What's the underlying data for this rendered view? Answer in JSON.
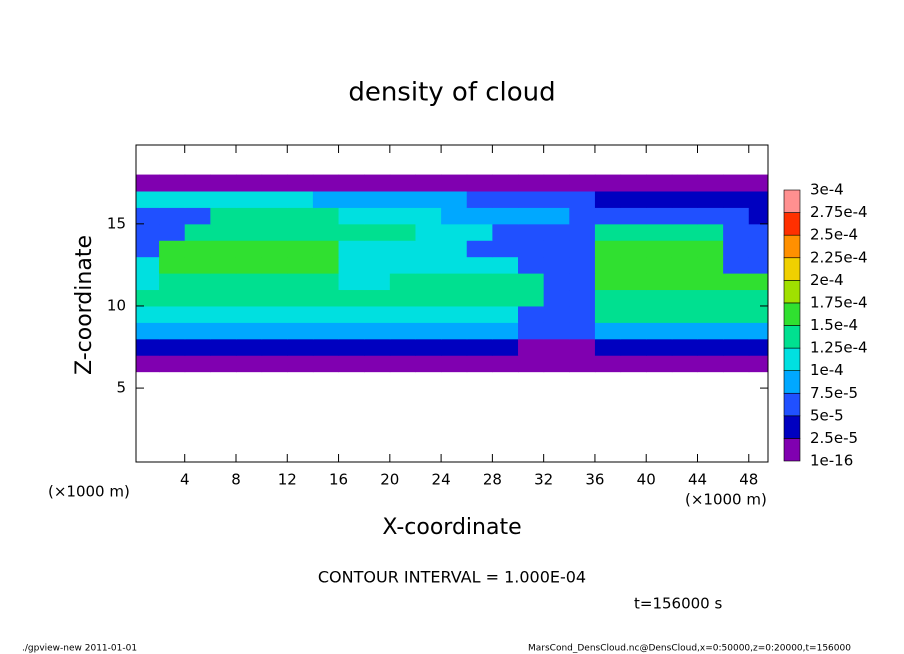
{
  "chart_data": {
    "type": "heatmap",
    "title": "density of cloud",
    "x_label": "X-coordinate",
    "y_label": "Z-coordinate",
    "x_unit": "(×1000 m)",
    "y_unit": "(×1000 m)",
    "xlim": [
      0.2,
      49.5
    ],
    "ylim": [
      0.5,
      19.8
    ],
    "xticks": [
      4,
      8,
      12,
      16,
      20,
      24,
      28,
      32,
      36,
      40,
      44,
      48
    ],
    "yticks": [
      5,
      10,
      15
    ],
    "x": [
      1,
      3,
      5,
      7,
      9,
      11,
      13,
      15,
      17,
      19,
      21,
      23,
      25,
      27,
      29,
      31,
      33,
      35,
      37,
      39,
      41,
      43,
      45,
      47,
      49
    ],
    "z": [
      6.5,
      7.5,
      8.5,
      9.5,
      10.5,
      11.5,
      12.5,
      13.5,
      14.5,
      15.5,
      16.5,
      17.5
    ],
    "values": [
      [
        1e-05,
        1e-05,
        1e-05,
        1e-05,
        1e-05,
        1e-05,
        1e-05,
        1e-05,
        1e-05,
        1e-05,
        1e-05,
        1e-05,
        1e-05,
        1e-05,
        1e-05,
        1e-05,
        1e-05,
        1e-05,
        1e-05,
        1e-05,
        1e-05,
        1e-05,
        1e-05,
        1e-05,
        1e-05
      ],
      [
        4e-05,
        4e-05,
        4e-05,
        4e-05,
        4e-05,
        4e-05,
        4e-05,
        4e-05,
        4e-05,
        4e-05,
        4e-05,
        4e-05,
        4e-05,
        4e-05,
        4e-05,
        2e-05,
        2e-05,
        2e-05,
        4e-05,
        4e-05,
        4e-05,
        4e-05,
        4e-05,
        4e-05,
        4e-05
      ],
      [
        8e-05,
        8e-05,
        8e-05,
        8e-05,
        8e-05,
        8e-05,
        8e-05,
        8e-05,
        8e-05,
        8e-05,
        8e-05,
        8e-05,
        8e-05,
        8e-05,
        8e-05,
        5e-05,
        5e-05,
        5e-05,
        8e-05,
        8e-05,
        8e-05,
        8e-05,
        8e-05,
        8e-05,
        8e-05
      ],
      [
        0.00011,
        0.00011,
        0.00011,
        0.00011,
        0.00011,
        0.00011,
        0.00011,
        0.00011,
        0.00011,
        0.00011,
        0.00011,
        0.00011,
        0.00011,
        0.00011,
        0.00011,
        7e-05,
        7e-05,
        7e-05,
        0.00013,
        0.00013,
        0.00013,
        0.00013,
        0.00013,
        0.00013,
        0.00013
      ],
      [
        0.00013,
        0.00013,
        0.00013,
        0.00013,
        0.00013,
        0.00013,
        0.00013,
        0.00013,
        0.00013,
        0.00013,
        0.00013,
        0.00013,
        0.00013,
        0.00013,
        0.00013,
        0.00013,
        6e-05,
        6e-05,
        0.00014,
        0.00014,
        0.00014,
        0.00014,
        0.00014,
        0.00014,
        0.00014
      ],
      [
        0.00012,
        0.00014,
        0.00014,
        0.00014,
        0.00014,
        0.00014,
        0.00014,
        0.00014,
        0.0001,
        0.0001,
        0.00014,
        0.00014,
        0.00014,
        0.00014,
        0.00014,
        0.00014,
        6e-05,
        6e-05,
        0.00015,
        0.00015,
        0.00015,
        0.00015,
        0.00015,
        0.00015,
        0.00015
      ],
      [
        0.00011,
        0.00015,
        0.00015,
        0.00015,
        0.00015,
        0.00015,
        0.00015,
        0.00015,
        0.00011,
        0.00011,
        0.00011,
        0.00011,
        0.00011,
        0.00011,
        0.00011,
        6e-05,
        6e-05,
        6e-05,
        0.00015,
        0.00015,
        0.00015,
        0.00015,
        0.00015,
        7e-05,
        7e-05
      ],
      [
        6e-05,
        0.00015,
        0.00015,
        0.00015,
        0.00015,
        0.00015,
        0.00015,
        0.00015,
        0.00011,
        0.00011,
        0.00011,
        0.00011,
        0.00011,
        7e-05,
        7e-05,
        7e-05,
        7e-05,
        5e-05,
        0.00015,
        0.00015,
        0.00015,
        0.00015,
        0.00015,
        6e-05,
        6e-05
      ],
      [
        5e-05,
        5e-05,
        0.00014,
        0.00014,
        0.00014,
        0.00014,
        0.00014,
        0.00014,
        0.00014,
        0.00014,
        0.00014,
        0.0001,
        0.0001,
        0.0001,
        6e-05,
        6e-05,
        6e-05,
        5e-05,
        0.000145,
        0.000145,
        0.000145,
        0.000145,
        0.000145,
        5e-05,
        5e-05
      ],
      [
        6e-05,
        6e-05,
        6e-05,
        0.00013,
        0.00013,
        0.00013,
        0.00013,
        0.00013,
        0.000105,
        0.000105,
        0.000105,
        0.000105,
        8e-05,
        8e-05,
        8e-05,
        8e-05,
        8e-05,
        6e-05,
        6e-05,
        6e-05,
        6e-05,
        6e-05,
        6e-05,
        6e-05,
        3e-05
      ],
      [
        0.0001,
        0.0001,
        0.0001,
        0.0001,
        0.0001,
        0.0001,
        0.0001,
        8e-05,
        8e-05,
        8e-05,
        8e-05,
        8e-05,
        8e-05,
        5e-05,
        5e-05,
        5e-05,
        5e-05,
        5e-05,
        3e-05,
        3e-05,
        3e-05,
        3e-05,
        3e-05,
        3e-05,
        3e-05
      ],
      [
        1.5e-05,
        1.5e-05,
        1.5e-05,
        1.5e-05,
        1.5e-05,
        1.5e-05,
        1.5e-05,
        1.5e-05,
        1.5e-05,
        1.5e-05,
        1.5e-05,
        1.5e-05,
        1.5e-05,
        1.5e-05,
        1.5e-05,
        1.5e-05,
        1.5e-05,
        1.5e-05,
        1.5e-05,
        1.5e-05,
        1.5e-05,
        1.5e-05,
        1.5e-05,
        1.5e-05,
        1.5e-05
      ]
    ],
    "levels": [
      {
        "value": 1e-16,
        "label": "1e-16"
      },
      {
        "value": 2.5e-05,
        "label": "2.5e-5"
      },
      {
        "value": 5e-05,
        "label": "5e-5"
      },
      {
        "value": 7.5e-05,
        "label": "7.5e-5"
      },
      {
        "value": 0.0001,
        "label": "1e-4"
      },
      {
        "value": 0.000125,
        "label": "1.25e-4"
      },
      {
        "value": 0.00015,
        "label": "1.5e-4"
      },
      {
        "value": 0.000175,
        "label": "1.75e-4"
      },
      {
        "value": 0.0002,
        "label": "2e-4"
      },
      {
        "value": 0.000225,
        "label": "2.25e-4"
      },
      {
        "value": 0.00025,
        "label": "2.5e-4"
      },
      {
        "value": 0.000275,
        "label": "2.75e-4"
      },
      {
        "value": 0.0003,
        "label": "3e-4"
      }
    ],
    "colors": [
      "#8000b0",
      "#0000c0",
      "#2050ff",
      "#00a8ff",
      "#00e0e0",
      "#00e090",
      "#30e030",
      "#a0e000",
      "#f0d000",
      "#ff9000",
      "#ff3000",
      "#ff9090"
    ],
    "contour_note": "CONTOUR INTERVAL = 1.000E-04",
    "time_note": "t=156000 s",
    "footer_left": "./gpview-new  2011-01-01",
    "footer_right": "MarsCond_DensCloud.nc@DensCloud,x=0:50000,z=0:20000,t=156000"
  }
}
